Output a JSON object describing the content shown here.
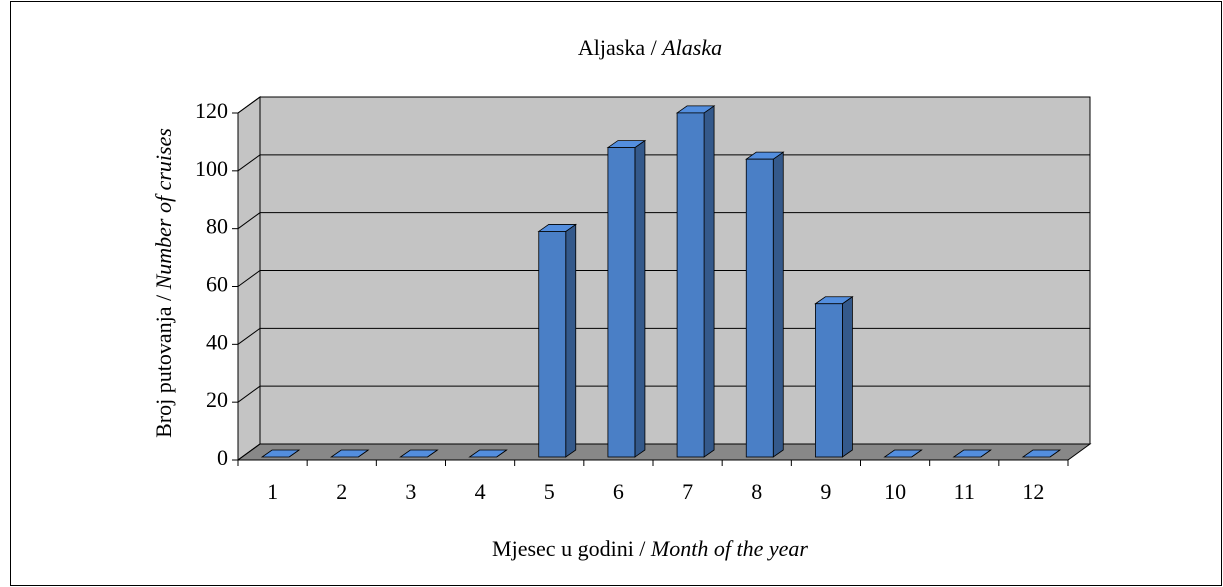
{
  "chart_data": {
    "type": "bar3d",
    "title": [
      "Aljaska / ",
      "Alaska"
    ],
    "xlabel": [
      "Mjesec u godini / ",
      "Month of the year"
    ],
    "ylabel": [
      "Broj putovanja / ",
      "Number of cruises"
    ],
    "categories": [
      "1",
      "2",
      "3",
      "4",
      "5",
      "6",
      "7",
      "8",
      "9",
      "10",
      "11",
      "12"
    ],
    "values": [
      0,
      0,
      0,
      0,
      78,
      107,
      119,
      103,
      53,
      0,
      0,
      0
    ],
    "color": "#4a7fc6",
    "ylim": [
      0,
      120
    ],
    "yticks": [
      0,
      20,
      40,
      60,
      80,
      100,
      120
    ],
    "grid": true
  }
}
